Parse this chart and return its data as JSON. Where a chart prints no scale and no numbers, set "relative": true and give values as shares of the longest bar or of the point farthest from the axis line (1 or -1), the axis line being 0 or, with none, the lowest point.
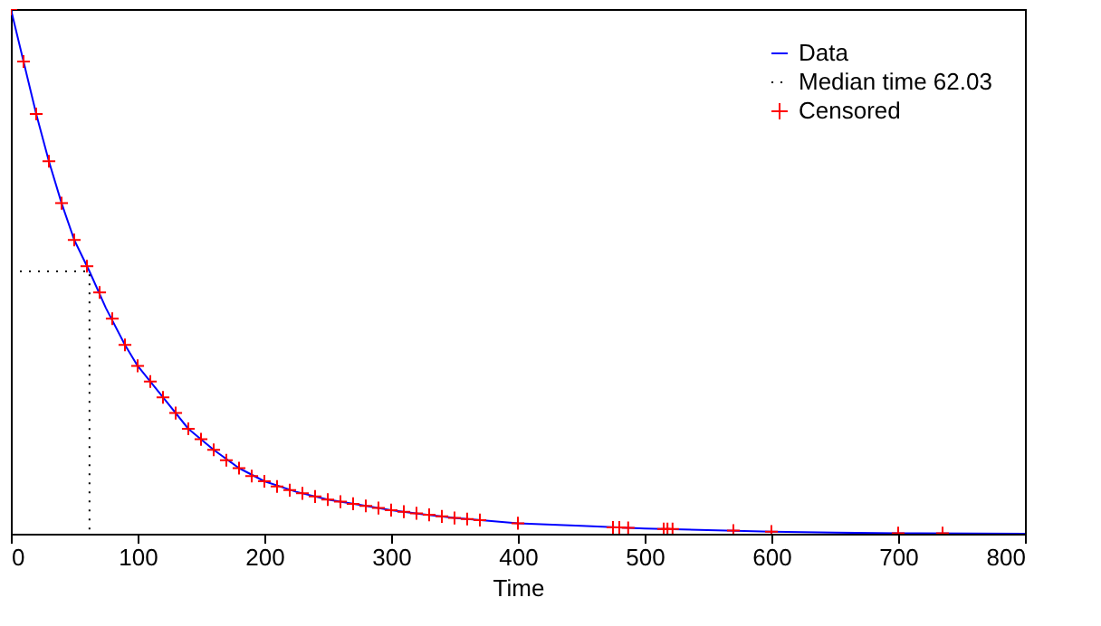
{
  "chart_data": {
    "type": "line",
    "relative": true,
    "xlabel": "Time",
    "xlim": [
      0,
      800
    ],
    "xticks": [
      0,
      100,
      200,
      300,
      400,
      500,
      600,
      700,
      800
    ],
    "grid": false,
    "legend": "top right",
    "series": [
      {
        "name": "Data",
        "color": "#0000ff",
        "line_style": "solid",
        "x": [
          0,
          10,
          20,
          30,
          40,
          50,
          62.03,
          75,
          90,
          100,
          120,
          140,
          160,
          180,
          200,
          225,
          250,
          275,
          300,
          325,
          350,
          375,
          400,
          450,
          500,
          550,
          600,
          650,
          700,
          800
        ],
        "values": [
          1.0,
          0.9,
          0.8,
          0.71,
          0.63,
          0.56,
          0.5,
          0.43,
          0.36,
          0.32,
          0.26,
          0.2,
          0.16,
          0.125,
          0.1,
          0.08,
          0.065,
          0.055,
          0.045,
          0.037,
          0.03,
          0.025,
          0.02,
          0.015,
          0.01,
          0.007,
          0.004,
          0.002,
          0.001,
          0.0
        ]
      },
      {
        "name": "Median time 62.03",
        "color": "#000000",
        "line_style": "dotted",
        "x": [
          0,
          62.03,
          62.03
        ],
        "values": [
          0.5,
          0.5,
          0.0
        ]
      },
      {
        "name": "Censored",
        "type": "scatter",
        "color": "#ff0000",
        "marker": "cross",
        "x": [
          0,
          10,
          20,
          30,
          40,
          50,
          60,
          70,
          80,
          90,
          100,
          110,
          120,
          130,
          140,
          150,
          160,
          170,
          180,
          190,
          200,
          210,
          220,
          230,
          240,
          250,
          260,
          270,
          280,
          290,
          300,
          310,
          320,
          330,
          340,
          350,
          360,
          370,
          400,
          475,
          480,
          487,
          515,
          518,
          522,
          570,
          600,
          700,
          735
        ],
        "values": [
          1.0,
          0.9,
          0.8,
          0.71,
          0.63,
          0.56,
          0.51,
          0.46,
          0.41,
          0.36,
          0.32,
          0.29,
          0.26,
          0.23,
          0.2,
          0.18,
          0.16,
          0.14,
          0.125,
          0.11,
          0.1,
          0.09,
          0.083,
          0.077,
          0.071,
          0.065,
          0.061,
          0.057,
          0.053,
          0.049,
          0.045,
          0.042,
          0.039,
          0.036,
          0.033,
          0.03,
          0.028,
          0.026,
          0.02,
          0.012,
          0.012,
          0.011,
          0.009,
          0.009,
          0.009,
          0.006,
          0.004,
          0.001,
          0.001
        ]
      }
    ]
  }
}
